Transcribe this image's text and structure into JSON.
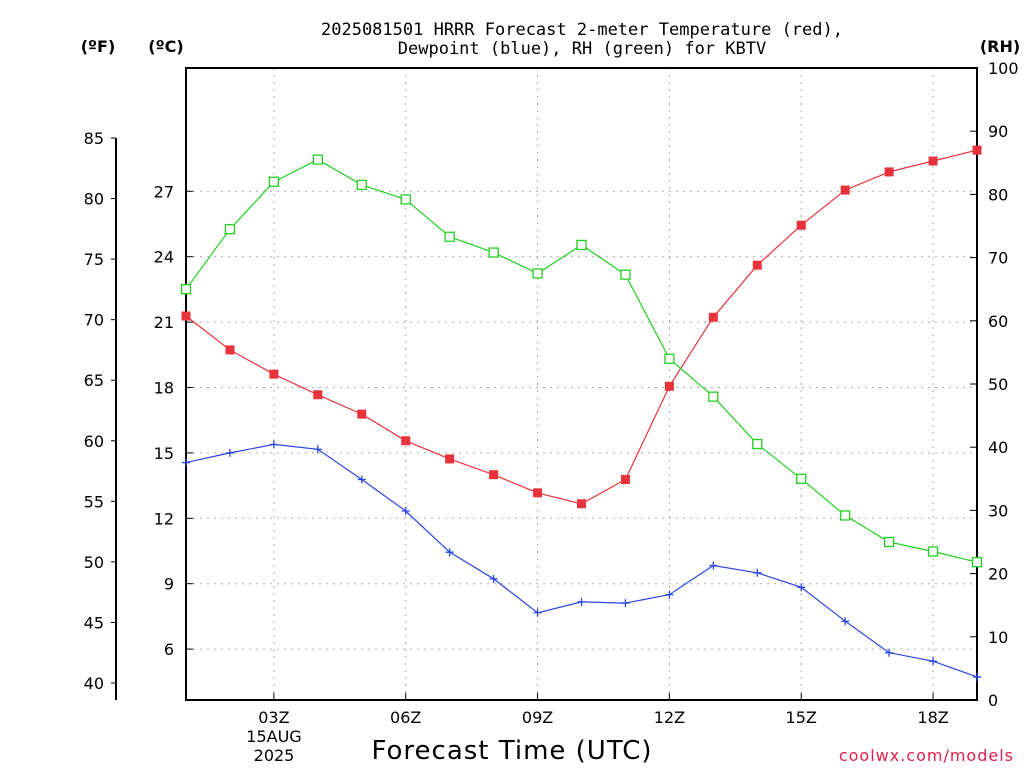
{
  "chart_data": {
    "type": "line",
    "title_line1": "2025081501 HRRR Forecast 2-meter Temperature (red),",
    "title_line2": "Dewpoint (blue), RH (green) for KBTV",
    "xlabel": "Forecast Time (UTC)",
    "credit": "coolwx.com/models",
    "date_label_day": "15AUG",
    "date_label_year": "2025",
    "x_hours": [
      1,
      2,
      3,
      4,
      5,
      6,
      7,
      8,
      9,
      10,
      11,
      12,
      13,
      14,
      15,
      16,
      17,
      18,
      19
    ],
    "x_ticks": [
      {
        "hour": 3,
        "label": "03Z"
      },
      {
        "hour": 6,
        "label": "06Z"
      },
      {
        "hour": 9,
        "label": "09Z"
      },
      {
        "hour": 12,
        "label": "12Z"
      },
      {
        "hour": 15,
        "label": "15Z"
      },
      {
        "hour": 18,
        "label": "18Z"
      }
    ],
    "axes": {
      "celsius": {
        "unit_label": "(ºC)",
        "ticks": [
          6,
          9,
          12,
          15,
          18,
          21,
          24,
          27
        ]
      },
      "fahrenheit": {
        "unit_label": "(ºF)",
        "ticks": [
          40,
          45,
          50,
          55,
          60,
          65,
          70,
          75,
          80,
          85
        ]
      },
      "rh": {
        "unit_label": "(RH)",
        "ticks": [
          0,
          10,
          20,
          30,
          40,
          50,
          60,
          70,
          80,
          90,
          100
        ]
      }
    },
    "series": [
      {
        "key": "temperature",
        "axis": "fahrenheit",
        "color": "#e8323c",
        "values": [
          70.3,
          67.5,
          65.5,
          63.8,
          62.2,
          60.0,
          58.5,
          57.2,
          55.7,
          54.8,
          56.8,
          64.5,
          70.2,
          74.5,
          77.8,
          80.7,
          82.2,
          83.1,
          84.0
        ]
      },
      {
        "key": "dewpoint",
        "axis": "fahrenheit",
        "color": "#2846e0",
        "values": [
          58.2,
          59.0,
          59.7,
          59.3,
          56.8,
          54.2,
          50.8,
          48.6,
          45.8,
          46.7,
          46.6,
          47.3,
          49.7,
          49.1,
          47.9,
          45.1,
          42.5,
          41.8,
          40.5
        ]
      },
      {
        "key": "rh",
        "axis": "rh",
        "color": "#22d022",
        "values": [
          65.0,
          74.5,
          82.0,
          85.5,
          81.5,
          79.2,
          73.3,
          70.8,
          67.5,
          72.0,
          67.3,
          54.0,
          48.0,
          40.5,
          35.0,
          29.2,
          25.0,
          23.5,
          21.8
        ]
      }
    ]
  }
}
